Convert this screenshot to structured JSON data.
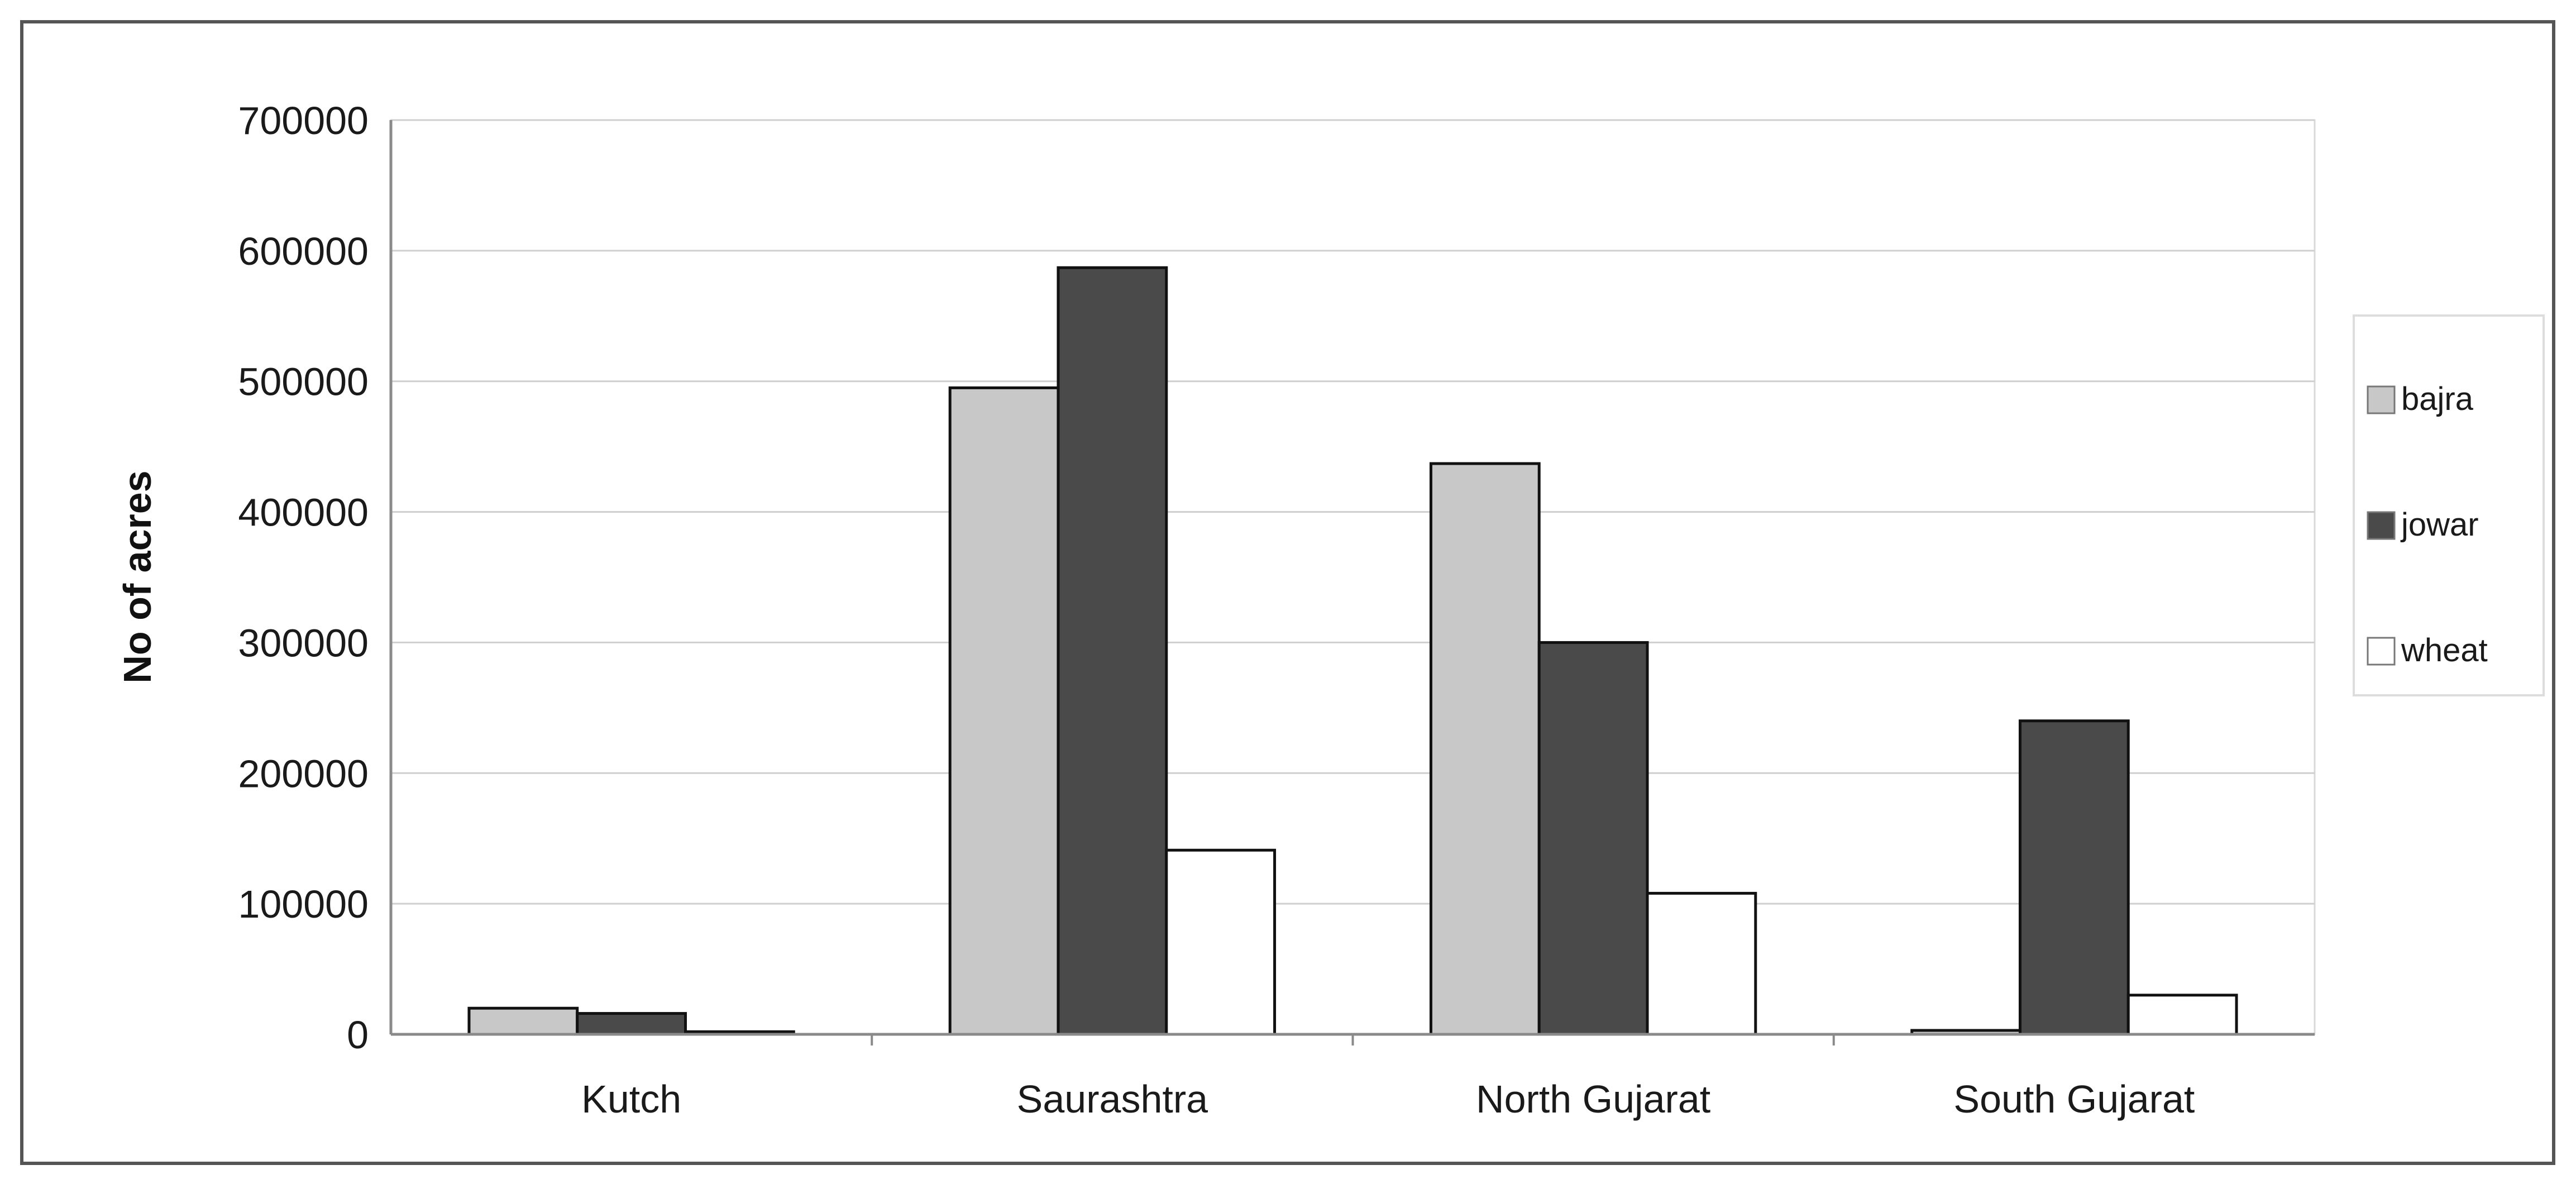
{
  "chart_data": {
    "type": "bar",
    "title": "",
    "xlabel": "",
    "ylabel": "No of acres",
    "categories": [
      "Kutch",
      "Saurashtra",
      "North Gujarat",
      "South Gujarat"
    ],
    "series": [
      {
        "name": "bajra",
        "color": "#c8c8c8",
        "values": [
          20000,
          495000,
          437000,
          3000
        ]
      },
      {
        "name": "jowar",
        "color": "#4a4a4a",
        "values": [
          16000,
          587000,
          300000,
          240000
        ]
      },
      {
        "name": "wheat",
        "color": "#ffffff",
        "values": [
          2000,
          141000,
          108000,
          30000
        ]
      }
    ],
    "ylim": [
      0,
      700000
    ],
    "yticks": [
      0,
      100000,
      200000,
      300000,
      400000,
      500000,
      600000,
      700000
    ],
    "grid": true,
    "legend_position": "right"
  }
}
